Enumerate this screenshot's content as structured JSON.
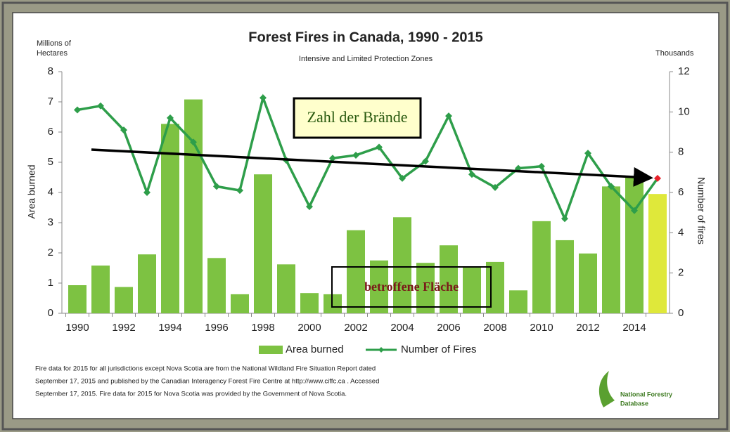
{
  "chart_data": {
    "type": "bar_line",
    "title": "Forest Fires in Canada, 1990 - 2015",
    "subtitle": "Intensive and Limited Protection Zones",
    "y_unit_label": [
      "Millions of",
      "Hectares"
    ],
    "y2_unit_label": "Thousands",
    "y_label": "Area burned",
    "y2_label": "Number of fires",
    "categories": [
      1990,
      null,
      1992,
      null,
      1994,
      null,
      1996,
      null,
      1998,
      null,
      2000,
      null,
      2002,
      null,
      2004,
      null,
      2006,
      null,
      2008,
      null,
      2010,
      null,
      2012,
      null,
      2014,
      null
    ],
    "series": [
      {
        "name": "Area burned",
        "type": "bar",
        "color": "#7dc242",
        "colors": [
          "#7dc242",
          "#7dc242",
          "#7dc242",
          "#7dc242",
          "#7dc242",
          "#7dc242",
          "#7dc242",
          "#7dc242",
          "#7dc242",
          "#7dc242",
          "#7dc242",
          "#7dc242",
          "#7dc242",
          "#7dc242",
          "#7dc242",
          "#7dc242",
          "#7dc242",
          "#7dc242",
          "#7dc242",
          "#7dc242",
          "#7dc242",
          "#7dc242",
          "#7dc242",
          "#7dc242",
          "#7dc242",
          "#dfe83a"
        ],
        "values": [
          0.93,
          1.58,
          0.87,
          1.95,
          6.27,
          7.08,
          1.83,
          0.63,
          4.6,
          1.62,
          0.67,
          0.63,
          2.75,
          1.75,
          3.18,
          1.67,
          2.25,
          1.55,
          1.7,
          0.76,
          3.05,
          2.42,
          1.98,
          4.2,
          4.55,
          3.95
        ]
      },
      {
        "name": "Number of Fires",
        "type": "line",
        "axis": "y2",
        "color": "#2e9e4a",
        "marker_colors": [
          "#2e9e4a",
          "#2e9e4a",
          "#2e9e4a",
          "#2e9e4a",
          "#2e9e4a",
          "#2e9e4a",
          "#2e9e4a",
          "#2e9e4a",
          "#2e9e4a",
          "#2e9e4a",
          "#2e9e4a",
          "#2e9e4a",
          "#2e9e4a",
          "#2e9e4a",
          "#2e9e4a",
          "#2e9e4a",
          "#2e9e4a",
          "#2e9e4a",
          "#2e9e4a",
          "#2e9e4a",
          "#2e9e4a",
          "#2e9e4a",
          "#2e9e4a",
          "#2e9e4a",
          "#2e9e4a",
          "#e8202a"
        ],
        "values": [
          10.1,
          10.3,
          9.1,
          6.0,
          9.7,
          8.5,
          6.3,
          6.1,
          10.7,
          7.6,
          5.3,
          7.7,
          7.85,
          8.25,
          6.7,
          7.55,
          9.8,
          6.9,
          6.25,
          7.2,
          7.3,
          4.7,
          7.95,
          6.3,
          5.1,
          6.7
        ]
      }
    ],
    "ylim": [
      0,
      8
    ],
    "yticks": [
      0,
      1,
      2,
      3,
      4,
      5,
      6,
      7,
      8
    ],
    "y2lim": [
      0,
      12
    ],
    "y2ticks": [
      0,
      2,
      4,
      6,
      8,
      10,
      12
    ],
    "annotations": [
      "Zahl der Brände",
      "betroffene Fläche"
    ],
    "footnote": [
      "Fire data for 2015 for all jurisdictions  except Nova Scotia are from the National Wildland Fire Situation Report dated",
      "September 17, 2015 and published by the Canadian Interagency Forest Fire Centre at http://www.ciffc.ca .  Accessed",
      "September 17, 2015.  Fire data for 2015 for Nova Scotia was provided by the Government of Nova Scotia."
    ],
    "logo": [
      "National Forestry",
      "Database"
    ]
  }
}
